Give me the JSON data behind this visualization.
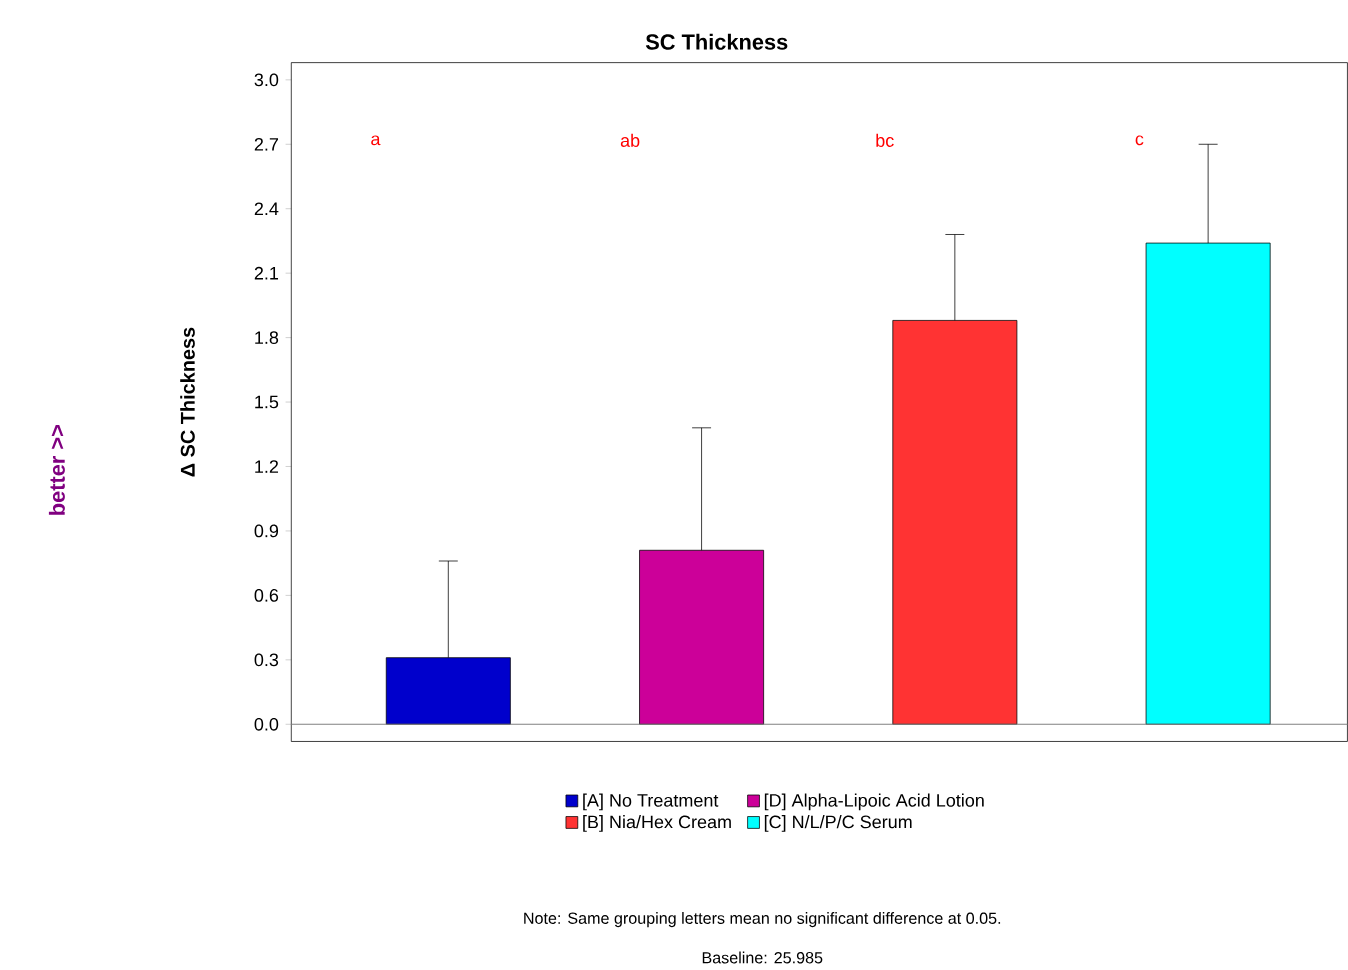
{
  "chart_data": {
    "type": "bar",
    "title": "SC Thickness",
    "ylabel": "Δ SC Thickness",
    "categories": [
      null,
      null,
      null,
      null
    ],
    "series": [
      {
        "name": "[A] No Treatment",
        "color": "#0000cc",
        "values": [
          0.31,
          null,
          null,
          null
        ],
        "errors": [
          [
            0.31,
            0.76
          ],
          null,
          null,
          null
        ]
      },
      {
        "name": "[D] Alpha-Lipoic Acid Lotion",
        "color": "#cc0099",
        "values": [
          null,
          0.81,
          null,
          null
        ],
        "errors": [
          null,
          [
            0.81,
            1.38
          ],
          null,
          null
        ]
      },
      {
        "name": "[B] Nia/Hex Cream",
        "color": "#ff3333",
        "values": [
          null,
          null,
          1.88,
          null
        ],
        "errors": [
          null,
          null,
          [
            1.88,
            2.28
          ],
          null
        ]
      },
      {
        "name": "[C] N/L/P/C Serum",
        "color": "#00ffff",
        "values": [
          null,
          null,
          null,
          2.24
        ],
        "errors": [
          null,
          null,
          null,
          [
            2.24,
            2.7
          ]
        ]
      }
    ],
    "ylim": [
      -0.08,
      3.08
    ],
    "yticks": [
      {
        "value": 0,
        "label": "0.0"
      },
      0.3,
      0.6,
      0.9,
      1.2,
      1.5,
      1.8,
      2.1,
      2.4,
      2.7,
      {
        "value": 3,
        "label": "3.0"
      }
    ],
    "ref_lines": [
      {
        "axis": "y",
        "value": 0,
        "color": "#808080"
      }
    ],
    "annotations": [
      "a",
      "ab",
      "bc",
      "c",
      "better  >>",
      "Note: Same grouping letters mean no significant difference at 0.05.",
      "Baseline: 25.985"
    ],
    "legend": "bottom",
    "grid": false
  }
}
